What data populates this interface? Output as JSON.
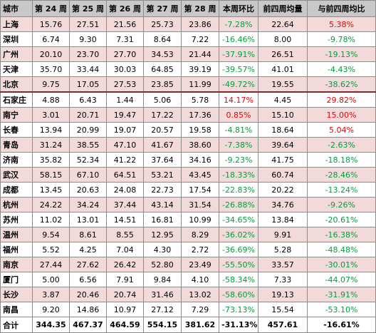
{
  "table": {
    "headers": [
      "城市",
      "第 24 周",
      "第 25 周",
      "第 26 周",
      "第 27 周",
      "第 28 周",
      "本周环比",
      "前四周均量",
      "与前四周均比"
    ],
    "rows": [
      {
        "city": "上海",
        "w24": "15.76",
        "w25": "27.51",
        "w26": "21.56",
        "w27": "25.73",
        "w28": "23.86",
        "wow": "-7.28%",
        "avg4": "22.64",
        "vs_avg": "5.38%",
        "shaded": true
      },
      {
        "city": "深圳",
        "w24": "6.74",
        "w25": "9.30",
        "w26": "7.31",
        "w27": "8.64",
        "w28": "7.22",
        "wow": "-16.46%",
        "avg4": "8.00",
        "vs_avg": "-9.78%",
        "shaded": false
      },
      {
        "city": "广州",
        "w24": "20.10",
        "w25": "23.70",
        "w26": "27.70",
        "w27": "34.53",
        "w28": "21.44",
        "wow": "-37.91%",
        "avg4": "26.51",
        "vs_avg": "-19.13%",
        "shaded": true
      },
      {
        "city": "天津",
        "w24": "35.70",
        "w25": "33.44",
        "w26": "30.03",
        "w27": "64.85",
        "w28": "39.19",
        "wow": "-39.57%",
        "avg4": "41.01",
        "vs_avg": "-4.43%",
        "shaded": false
      },
      {
        "city": "北京",
        "w24": "9.75",
        "w25": "17.05",
        "w26": "27.53",
        "w27": "23.85",
        "w28": "11.99",
        "wow": "-49.72%",
        "avg4": "19.55",
        "vs_avg": "-38.62%",
        "shaded": true
      },
      {
        "city": "石家庄",
        "w24": "4.88",
        "w25": "6.43",
        "w26": "1.44",
        "w27": "5.06",
        "w28": "5.78",
        "wow": "14.17%",
        "avg4": "4.45",
        "vs_avg": "29.82%",
        "shaded": false,
        "sep": true
      },
      {
        "city": "南宁",
        "w24": "3.01",
        "w25": "20.71",
        "w26": "19.47",
        "w27": "17.22",
        "w28": "17.36",
        "wow": "0.85%",
        "avg4": "15.10",
        "vs_avg": "15.00%",
        "shaded": true
      },
      {
        "city": "长春",
        "w24": "13.94",
        "w25": "20.99",
        "w26": "19.07",
        "w27": "20.57",
        "w28": "19.58",
        "wow": "-4.81%",
        "avg4": "18.64",
        "vs_avg": "5.04%",
        "shaded": false
      },
      {
        "city": "青岛",
        "w24": "31.24",
        "w25": "38.55",
        "w26": "47.10",
        "w27": "41.67",
        "w28": "38.60",
        "wow": "-7.38%",
        "avg4": "39.64",
        "vs_avg": "-2.63%",
        "shaded": true
      },
      {
        "city": "济南",
        "w24": "35.82",
        "w25": "52.34",
        "w26": "41.22",
        "w27": "37.64",
        "w28": "34.16",
        "wow": "-9.23%",
        "avg4": "41.75",
        "vs_avg": "-18.18%",
        "shaded": false
      },
      {
        "city": "武汉",
        "w24": "58.15",
        "w25": "67.10",
        "w26": "64.51",
        "w27": "53.21",
        "w28": "43.45",
        "wow": "-18.33%",
        "avg4": "60.74",
        "vs_avg": "-28.46%",
        "shaded": true
      },
      {
        "city": "成都",
        "w24": "13.45",
        "w25": "20.63",
        "w26": "24.08",
        "w27": "22.73",
        "w28": "17.54",
        "wow": "-22.83%",
        "avg4": "20.22",
        "vs_avg": "-13.24%",
        "shaded": false
      },
      {
        "city": "杭州",
        "w24": "24.22",
        "w25": "34.24",
        "w26": "37.44",
        "w27": "43.14",
        "w28": "31.54",
        "wow": "-26.88%",
        "avg4": "34.76",
        "vs_avg": "-9.26%",
        "shaded": true
      },
      {
        "city": "苏州",
        "w24": "11.02",
        "w25": "13.01",
        "w26": "14.51",
        "w27": "16.81",
        "w28": "10.99",
        "wow": "-34.65%",
        "avg4": "13.84",
        "vs_avg": "-20.61%",
        "shaded": false
      },
      {
        "city": "温州",
        "w24": "9.54",
        "w25": "8.61",
        "w26": "8.55",
        "w27": "12.95",
        "w28": "8.29",
        "wow": "-36.02%",
        "avg4": "9.91",
        "vs_avg": "-16.38%",
        "shaded": true
      },
      {
        "city": "福州",
        "w24": "5.52",
        "w25": "4.25",
        "w26": "7.04",
        "w27": "4.30",
        "w28": "2.72",
        "wow": "-36.69%",
        "avg4": "5.28",
        "vs_avg": "-48.48%",
        "shaded": false
      },
      {
        "city": "南京",
        "w24": "27.44",
        "w25": "27.62",
        "w26": "26.42",
        "w27": "52.80",
        "w28": "23.49",
        "wow": "-55.50%",
        "avg4": "33.57",
        "vs_avg": "-30.01%",
        "shaded": true
      },
      {
        "city": "厦门",
        "w24": "5.00",
        "w25": "6.56",
        "w26": "7.91",
        "w27": "9.84",
        "w28": "4.10",
        "wow": "-58.34%",
        "avg4": "7.33",
        "vs_avg": "-44.07%",
        "shaded": false
      },
      {
        "city": "长沙",
        "w24": "3.87",
        "w25": "20.46",
        "w26": "20.74",
        "w27": "31.46",
        "w28": "13.02",
        "wow": "-58.60%",
        "avg4": "19.13",
        "vs_avg": "-31.91%",
        "shaded": true
      },
      {
        "city": "南昌",
        "w24": "9.20",
        "w25": "14.86",
        "w26": "10.97",
        "w27": "27.12",
        "w28": "7.29",
        "wow": "-73.13%",
        "avg4": "15.54",
        "vs_avg": "-53.10%",
        "shaded": false
      }
    ],
    "total": {
      "city": "合计",
      "w24": "344.35",
      "w25": "467.37",
      "w26": "464.59",
      "w27": "554.15",
      "w28": "381.62",
      "wow": "-31.13%",
      "avg4": "457.61",
      "vs_avg": "-16.61%"
    }
  },
  "colors": {
    "header_bg": "#c8c8c8",
    "shaded_row_bg": "#f2d9da",
    "negative_text": "#00a03c",
    "positive_text": "#ee0000",
    "separator_line": "#7b2b2b"
  }
}
